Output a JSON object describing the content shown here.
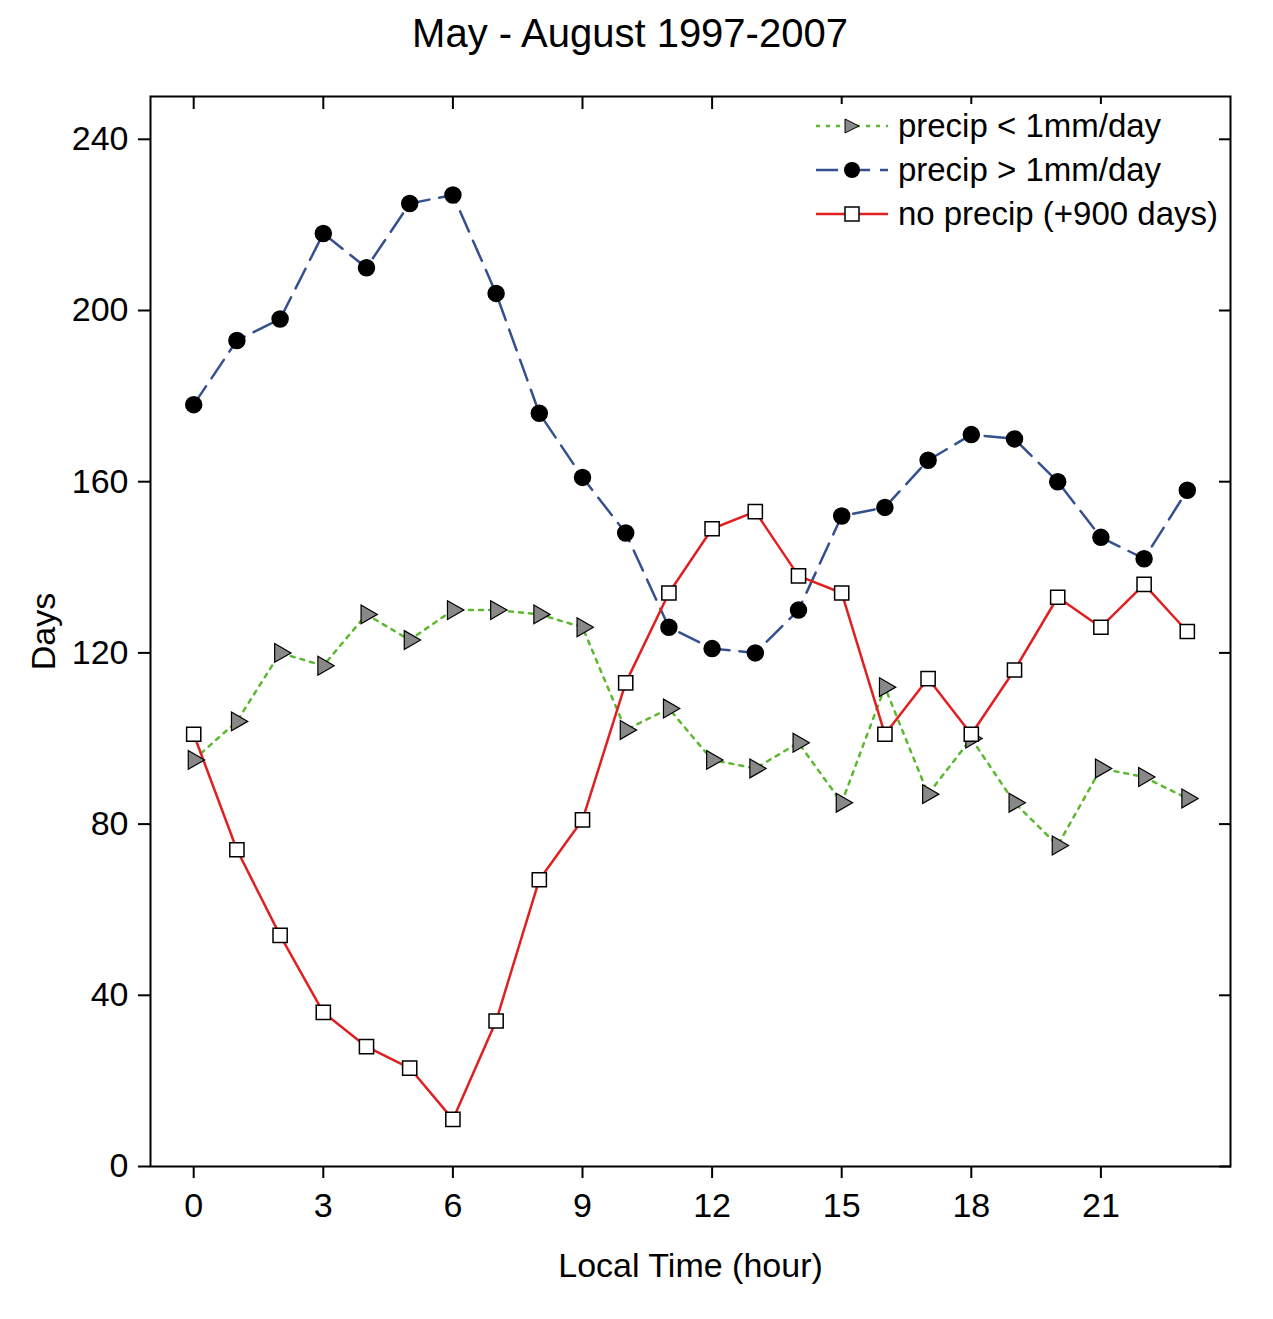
{
  "chart_data": {
    "type": "line",
    "title": "May - August 1997-2007",
    "x_label": "Local Time (hour)",
    "y_label": "Days",
    "x": [
      0,
      1,
      2,
      3,
      4,
      5,
      6,
      7,
      8,
      9,
      10,
      11,
      12,
      13,
      14,
      15,
      16,
      17,
      18,
      19,
      20,
      21,
      22,
      23
    ],
    "series": [
      {
        "name": "precip < 1mm/day",
        "color": "#5cb82e",
        "marker": "triangle",
        "line_style": "dotted",
        "values": [
          95,
          104,
          120,
          117,
          129,
          123,
          130,
          130,
          129,
          126,
          102,
          107,
          95,
          93,
          99,
          85,
          112,
          87,
          100,
          85,
          75,
          93,
          91,
          86
        ]
      },
      {
        "name": "precip > 1mm/day",
        "color": "#34508f",
        "marker": "filled_circle",
        "line_style": "dashed",
        "values": [
          178,
          193,
          198,
          218,
          210,
          225,
          227,
          204,
          176,
          161,
          148,
          126,
          121,
          120,
          130,
          152,
          154,
          165,
          171,
          170,
          160,
          147,
          142,
          158
        ]
      },
      {
        "name": "no precip (+900 days)",
        "color": "#e02020",
        "marker": "open_square",
        "line_style": "solid",
        "values": [
          101,
          74,
          54,
          36,
          28,
          23,
          11,
          34,
          67,
          81,
          113,
          134,
          149,
          153,
          138,
          134,
          101,
          114,
          101,
          116,
          133,
          126,
          136,
          125
        ]
      }
    ],
    "xlim": [
      -1,
      24
    ],
    "xticks": [
      0,
      3,
      6,
      9,
      12,
      15,
      18,
      21
    ],
    "ylim": [
      0,
      250
    ],
    "yticks": [
      0,
      40,
      80,
      120,
      160,
      200,
      240
    ],
    "legend": "top-right",
    "grid": false
  }
}
